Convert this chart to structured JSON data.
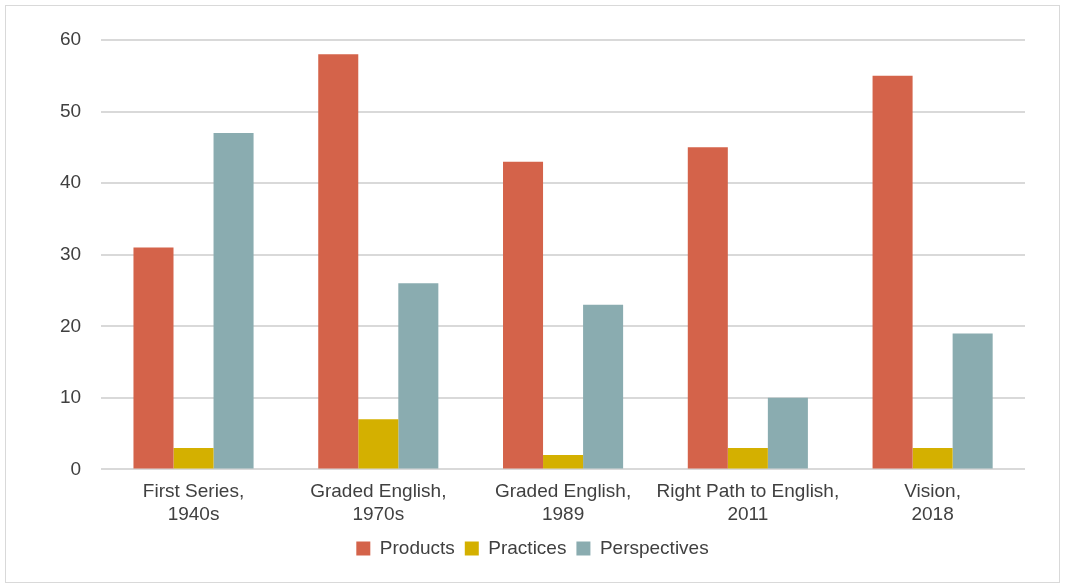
{
  "chart_data": {
    "type": "bar",
    "categories": [
      "First Series, 1940s",
      "Graded English, 1970s",
      "Graded English, 1989",
      "Right Path to English, 2011",
      "Vision, 2018"
    ],
    "series": [
      {
        "name": "Products",
        "color": "#d4634a",
        "values": [
          31,
          58,
          43,
          45,
          55
        ]
      },
      {
        "name": "Practices",
        "color": "#d4b000",
        "values": [
          3,
          7,
          2,
          3,
          3
        ]
      },
      {
        "name": "Perspectives",
        "color": "#8aacb0",
        "values": [
          47,
          26,
          23,
          10,
          19
        ]
      }
    ],
    "ylim": [
      0,
      60
    ],
    "yticks": [
      0,
      10,
      20,
      30,
      40,
      50,
      60
    ],
    "grid": "y",
    "legend": "bottom"
  }
}
